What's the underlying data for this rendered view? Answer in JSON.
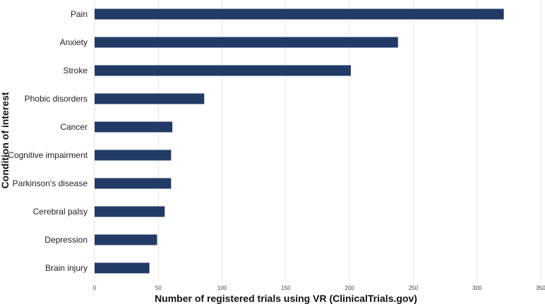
{
  "chart_data": {
    "type": "bar",
    "orientation": "horizontal",
    "categories": [
      "Pain",
      "Anxiety",
      "Stroke",
      "Phobic disorders",
      "Cancer",
      "Cognitive impairment",
      "Parkinson's disease",
      "Cerebral palsy",
      "Depression",
      "Brain injury"
    ],
    "values": [
      321,
      238,
      201,
      86,
      61,
      60,
      60,
      55,
      49,
      43
    ],
    "xlabel": "Number of registered trials using VR (ClinicalTrials.gov)",
    "ylabel": "Condition of interest",
    "xlim": [
      0,
      350
    ],
    "xticks": [
      0,
      50,
      100,
      150,
      200,
      250,
      300,
      350
    ],
    "grid": "vertical",
    "colors": {
      "bar": "#223a66"
    }
  }
}
